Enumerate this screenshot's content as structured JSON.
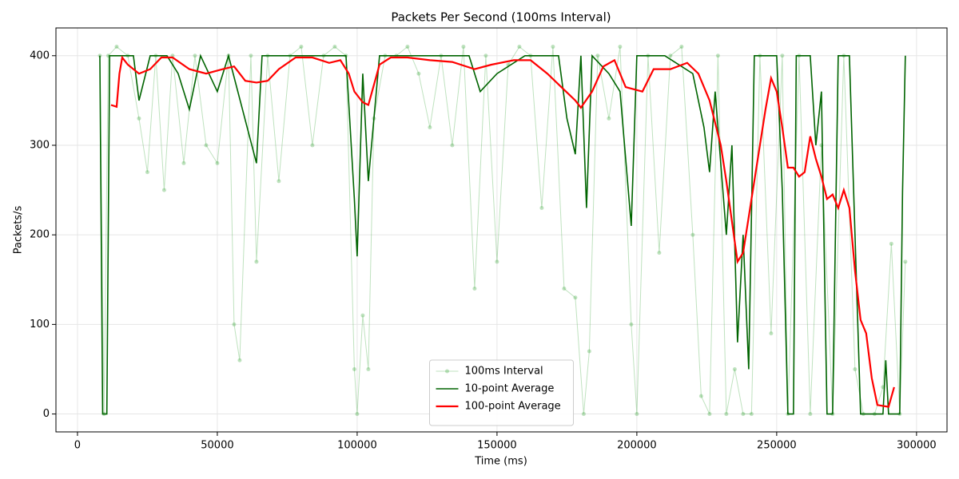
{
  "chart_data": {
    "type": "line",
    "title": "Packets Per Second (100ms Interval)",
    "x_label": "Time (ms)",
    "y_label": "Packets/s",
    "xlim": [
      -7700,
      310900
    ],
    "ylim": [
      -20,
      431
    ],
    "xticks": [
      0,
      50000,
      100000,
      150000,
      200000,
      250000,
      300000
    ],
    "yticks": [
      0,
      100,
      200,
      300,
      400
    ],
    "grid": true,
    "legend": "lower center",
    "series": [
      {
        "name": "100ms Interval",
        "color": "#2ca02c",
        "marker": true,
        "x": [
          8000,
          9500,
          11000,
          14000,
          18000,
          22000,
          25000,
          28000,
          31000,
          34000,
          38000,
          42000,
          46000,
          50000,
          54000,
          56000,
          58000,
          62000,
          64000,
          68000,
          72000,
          76000,
          80000,
          84000,
          88000,
          92000,
          96000,
          99000,
          100000,
          102000,
          104000,
          106000,
          110000,
          114000,
          118000,
          122000,
          126000,
          130000,
          134000,
          138000,
          142000,
          146000,
          150000,
          154000,
          158000,
          162000,
          166000,
          170000,
          174000,
          178000,
          181000,
          183000,
          186000,
          190000,
          194000,
          198000,
          200000,
          204000,
          208000,
          212000,
          216000,
          220000,
          223000,
          226000,
          229000,
          232000,
          235000,
          238000,
          241000,
          244000,
          248000,
          252000,
          254000,
          258000,
          262000,
          266000,
          270000,
          274000,
          278000,
          281000,
          285000,
          288000,
          291000,
          294000,
          296000
        ],
        "values": [
          400,
          0,
          400,
          410,
          400,
          330,
          270,
          400,
          250,
          400,
          280,
          400,
          300,
          280,
          400,
          100,
          60,
          400,
          170,
          400,
          260,
          400,
          410,
          300,
          400,
          410,
          400,
          50,
          0,
          110,
          50,
          330,
          400,
          400,
          410,
          380,
          320,
          400,
          300,
          410,
          140,
          400,
          170,
          390,
          410,
          400,
          230,
          410,
          140,
          130,
          0,
          70,
          400,
          330,
          410,
          100,
          0,
          400,
          180,
          400,
          410,
          200,
          20,
          0,
          400,
          0,
          50,
          0,
          0,
          400,
          90,
          400,
          0,
          400,
          0,
          300,
          0,
          400,
          50,
          0,
          0,
          30,
          190,
          0,
          170
        ]
      },
      {
        "name": "10-point Average",
        "color": "#006400",
        "marker": false,
        "x": [
          8000,
          9000,
          10500,
          11500,
          20000,
          22000,
          26000,
          32000,
          36000,
          40000,
          44000,
          50000,
          54000,
          64000,
          66000,
          80000,
          96000,
          99000,
          100000,
          102000,
          104000,
          108000,
          140000,
          144000,
          150000,
          160000,
          172000,
          175000,
          178000,
          180000,
          182000,
          184000,
          190000,
          194000,
          198000,
          200000,
          210000,
          220000,
          224000,
          226000,
          228000,
          232000,
          234000,
          236000,
          238000,
          240000,
          242000,
          250000,
          252000,
          254000,
          256000,
          257000,
          262000,
          264000,
          266000,
          268000,
          270000,
          272000,
          276000,
          280000,
          288000,
          289000,
          290000,
          294000,
          295000,
          296000
        ],
        "values": [
          400,
          0,
          0,
          400,
          400,
          350,
          400,
          400,
          380,
          340,
          400,
          360,
          400,
          280,
          400,
          400,
          400,
          240,
          176,
          380,
          260,
          400,
          400,
          360,
          380,
          400,
          400,
          330,
          290,
          400,
          230,
          400,
          380,
          360,
          210,
          400,
          400,
          380,
          320,
          270,
          360,
          200,
          300,
          80,
          200,
          50,
          400,
          400,
          250,
          0,
          0,
          400,
          400,
          300,
          360,
          0,
          0,
          400,
          400,
          0,
          0,
          60,
          0,
          0,
          248,
          400
        ]
      },
      {
        "name": "100-point Average",
        "color": "#ff0000",
        "marker": false,
        "x": [
          12000,
          14000,
          15000,
          16000,
          18000,
          22000,
          26000,
          30000,
          34000,
          40000,
          46000,
          52000,
          56000,
          60000,
          64000,
          68000,
          72000,
          78000,
          84000,
          90000,
          94000,
          97000,
          99000,
          102000,
          104000,
          108000,
          112000,
          118000,
          126000,
          134000,
          142000,
          148000,
          156000,
          162000,
          168000,
          174000,
          178000,
          180000,
          184000,
          188000,
          192000,
          196000,
          202000,
          206000,
          212000,
          218000,
          222000,
          226000,
          230000,
          232000,
          236000,
          238000,
          242000,
          246000,
          248000,
          250000,
          252000,
          254000,
          256000,
          258000,
          260000,
          262000,
          264000,
          266000,
          268000,
          270000,
          272000,
          274000,
          276000,
          278000,
          280000,
          282000,
          284000,
          286000,
          290000,
          292000
        ],
        "values": [
          345,
          343,
          380,
          398,
          390,
          380,
          385,
          398,
          398,
          385,
          380,
          385,
          388,
          372,
          370,
          372,
          385,
          398,
          398,
          392,
          395,
          380,
          360,
          348,
          345,
          390,
          398,
          398,
          395,
          393,
          385,
          390,
          395,
          395,
          380,
          362,
          350,
          342,
          360,
          388,
          395,
          365,
          360,
          385,
          385,
          392,
          380,
          350,
          300,
          260,
          170,
          180,
          260,
          340,
          375,
          360,
          320,
          275,
          275,
          265,
          270,
          310,
          285,
          265,
          240,
          245,
          230,
          250,
          230,
          160,
          105,
          90,
          40,
          10,
          8,
          30
        ]
      }
    ]
  }
}
